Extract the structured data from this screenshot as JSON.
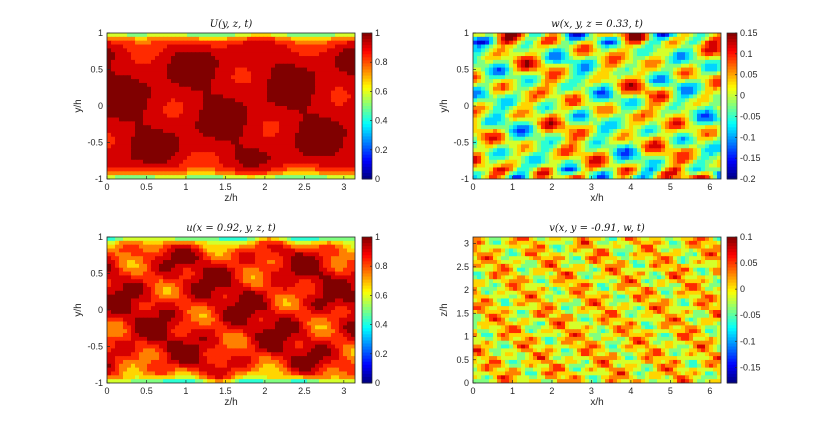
{
  "chart_data": [
    {
      "type": "heatmap",
      "title": "U(y, z, t)",
      "xlabel": "z/h",
      "ylabel": "y/h",
      "xlim": [
        0,
        3.14159
      ],
      "ylim": [
        -1,
        1
      ],
      "xticks": [
        "0",
        "0.5",
        "1",
        "1.5",
        "2",
        "2.5",
        "3"
      ],
      "yticks": [
        "-1",
        "-0.5",
        "0",
        "0.5",
        "1"
      ],
      "colorbar": {
        "range": [
          0,
          1
        ],
        "ticks": [
          "0",
          "0.2",
          "0.4",
          "0.6",
          "0.8",
          "1"
        ]
      },
      "field": "mean"
    },
    {
      "type": "heatmap",
      "title": "w(x, y, z = 0.33, t)",
      "xlabel": "x/h",
      "ylabel": "y/h",
      "xlim": [
        0,
        6.28318
      ],
      "ylim": [
        -1,
        1
      ],
      "xticks": [
        "0",
        "1",
        "2",
        "3",
        "4",
        "5",
        "6"
      ],
      "yticks": [
        "-1",
        "-0.5",
        "0",
        "0.5",
        "1"
      ],
      "colorbar": {
        "range": [
          -0.2,
          0.15
        ],
        "ticks": [
          "-0.2",
          "-0.15",
          "-0.1",
          "-0.05",
          "0",
          "0.05",
          "0.1",
          "0.15"
        ]
      },
      "field": "w"
    },
    {
      "type": "heatmap",
      "title": "u(x = 0.92, y, z, t)",
      "xlabel": "z/h",
      "ylabel": "y/h",
      "xlim": [
        0,
        3.14159
      ],
      "ylim": [
        -1,
        1
      ],
      "xticks": [
        "0",
        "0.5",
        "1",
        "1.5",
        "2",
        "2.5",
        "3"
      ],
      "yticks": [
        "-1",
        "-0.5",
        "0",
        "0.5",
        "1"
      ],
      "colorbar": {
        "range": [
          0,
          1
        ],
        "ticks": [
          "0",
          "0.2",
          "0.4",
          "0.6",
          "0.8",
          "1"
        ]
      },
      "field": "u"
    },
    {
      "type": "heatmap",
      "title": "v(x, y = -0.91, w, t)",
      "xlabel": "x/h",
      "ylabel": "z/h",
      "xlim": [
        0,
        6.28318
      ],
      "ylim": [
        0,
        3.14159
      ],
      "xticks": [
        "0",
        "1",
        "2",
        "3",
        "4",
        "5",
        "6"
      ],
      "yticks": [
        "0",
        "0.5",
        "1",
        "1.5",
        "2",
        "2.5",
        "3"
      ],
      "colorbar": {
        "range": [
          -0.18,
          0.1
        ],
        "ticks": [
          "-0.15",
          "-0.1",
          "-0.05",
          "0",
          "0.05",
          "0.1"
        ]
      },
      "field": "v"
    }
  ],
  "colormap": "jet"
}
